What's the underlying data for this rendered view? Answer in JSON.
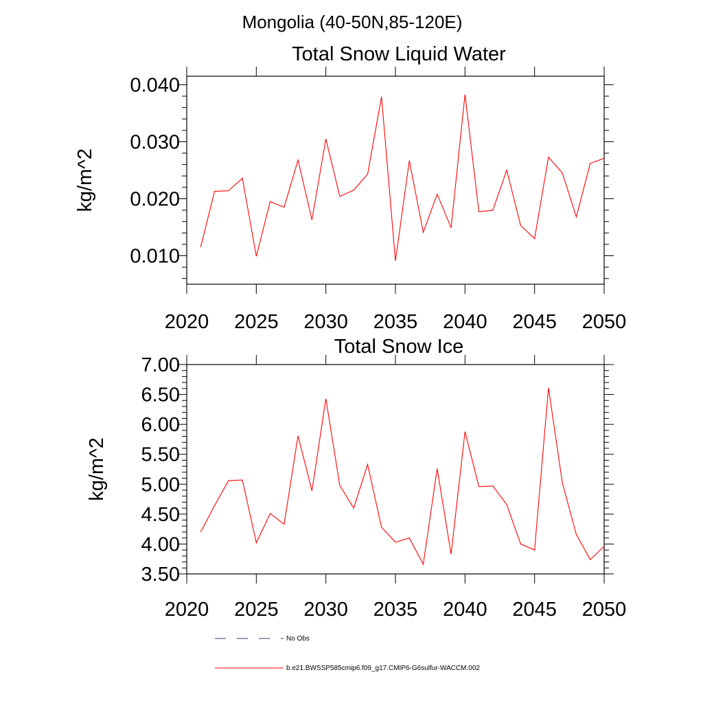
{
  "figure": {
    "title": "Mongolia (40-50N,85-120E)"
  },
  "chart_data": [
    {
      "type": "line",
      "title": "Total Snow Liquid Water",
      "xlabel": "",
      "ylabel": "kg/m^2",
      "xlim": [
        2020,
        2050
      ],
      "ylim": [
        0.005,
        0.0415
      ],
      "x_ticks": [
        "2020",
        "2025",
        "2030",
        "2035",
        "2040",
        "2045",
        "2050"
      ],
      "y_ticks": [
        "0.010",
        "0.020",
        "0.030",
        "0.040"
      ],
      "x": [
        2021,
        2022,
        2023,
        2024,
        2025,
        2026,
        2027,
        2028,
        2029,
        2030,
        2031,
        2032,
        2033,
        2034,
        2035,
        2036,
        2037,
        2038,
        2039,
        2040,
        2041,
        2042,
        2043,
        2044,
        2045,
        2046,
        2047,
        2048,
        2049,
        2050
      ],
      "series": [
        {
          "color": "#ff0000",
          "values": [
            0.0115,
            0.0213,
            0.0214,
            0.0236,
            0.0099,
            0.0195,
            0.0185,
            0.0268,
            0.0163,
            0.0305,
            0.0204,
            0.0215,
            0.0243,
            0.0379,
            0.0091,
            0.0267,
            0.0141,
            0.0208,
            0.0149,
            0.0383,
            0.0177,
            0.018,
            0.025,
            0.0153,
            0.013,
            0.0273,
            0.0245,
            0.0168,
            0.0262,
            0.0271
          ]
        }
      ]
    },
    {
      "type": "line",
      "title": "Total Snow Ice",
      "xlabel": "",
      "ylabel": "kg/m^2",
      "xlim": [
        2020,
        2050
      ],
      "ylim": [
        3.5,
        7.0
      ],
      "x_ticks": [
        "2020",
        "2025",
        "2030",
        "2035",
        "2040",
        "2045",
        "2050"
      ],
      "y_ticks": [
        "3.50",
        "4.00",
        "4.50",
        "5.00",
        "5.50",
        "6.00",
        "6.50",
        "7.00"
      ],
      "x": [
        2021,
        2022,
        2023,
        2024,
        2025,
        2026,
        2027,
        2028,
        2029,
        2030,
        2031,
        2032,
        2033,
        2034,
        2035,
        2036,
        2037,
        2038,
        2039,
        2040,
        2041,
        2042,
        2043,
        2044,
        2045,
        2046,
        2047,
        2048,
        2049,
        2050
      ],
      "series": [
        {
          "color": "#ff0000",
          "values": [
            4.2,
            4.64,
            5.06,
            5.07,
            4.02,
            4.51,
            4.33,
            5.81,
            4.89,
            6.43,
            4.98,
            4.6,
            5.33,
            4.28,
            4.03,
            4.1,
            3.66,
            5.26,
            3.83,
            5.88,
            4.96,
            4.97,
            4.66,
            4.0,
            3.9,
            6.61,
            5.02,
            4.16,
            3.74,
            3.96
          ]
        }
      ]
    }
  ],
  "legend": {
    "placement": "bottom",
    "items": [
      {
        "label": "No Obs",
        "color": "#3a3a6a",
        "dash": "dashed"
      },
      {
        "label": "b.e21.BWSSP585cmip6.f09_g17.CMIP6-G6sulfur-WACCM.002",
        "color": "#ff0000",
        "dash": "solid"
      }
    ]
  }
}
